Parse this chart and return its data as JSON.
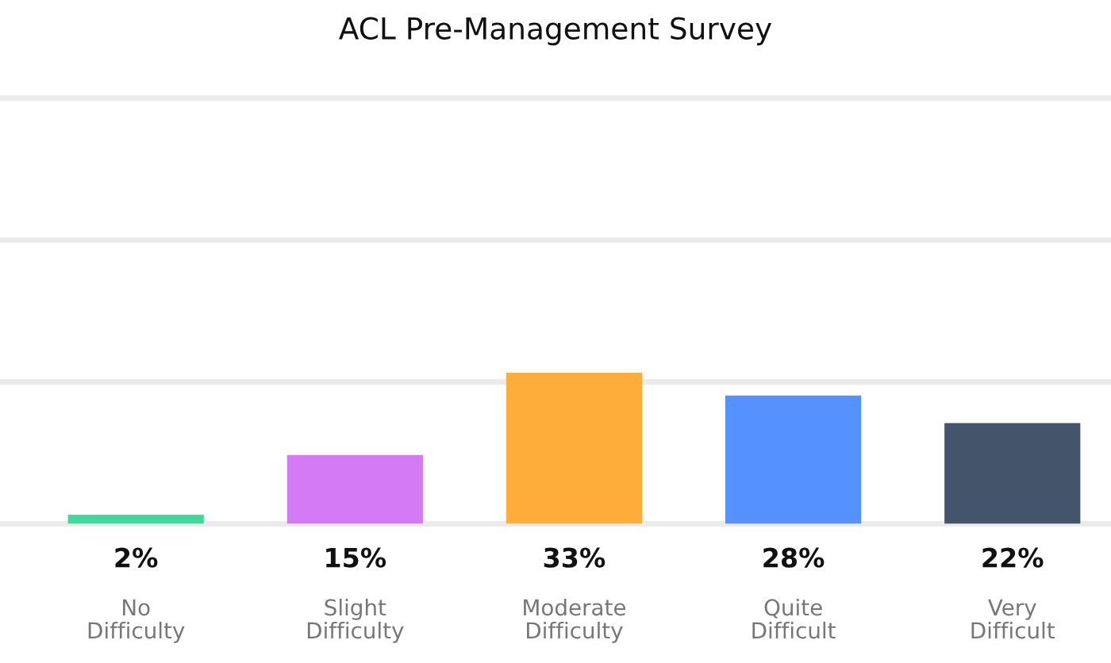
{
  "chart_data": {
    "type": "bar",
    "title": "ACL Pre-Management Survey",
    "categories": [
      "No\nDifficulty",
      "Slight\nDifficulty",
      "Moderate\nDifficulty",
      "Quite\nDifficult",
      "Very\nDifficult"
    ],
    "values": [
      2,
      15,
      33,
      28,
      22
    ],
    "colors": [
      "#3fd9a0",
      "#d47af5",
      "#ffad3a",
      "#5591ff",
      "#44546a"
    ],
    "value_labels": [
      "2%",
      "15%",
      "33%",
      "28%",
      "22%"
    ],
    "ref_lines": [
      {
        "axis": "y",
        "value": 0,
        "color": "#ebebeb"
      },
      {
        "axis": "y",
        "value": 31,
        "color": "#ebebeb"
      },
      {
        "axis": "y",
        "value": 62,
        "color": "#ebebeb"
      },
      {
        "axis": "y",
        "value": 93,
        "color": "#ebebeb"
      }
    ],
    "tick_labels": "x"
  }
}
